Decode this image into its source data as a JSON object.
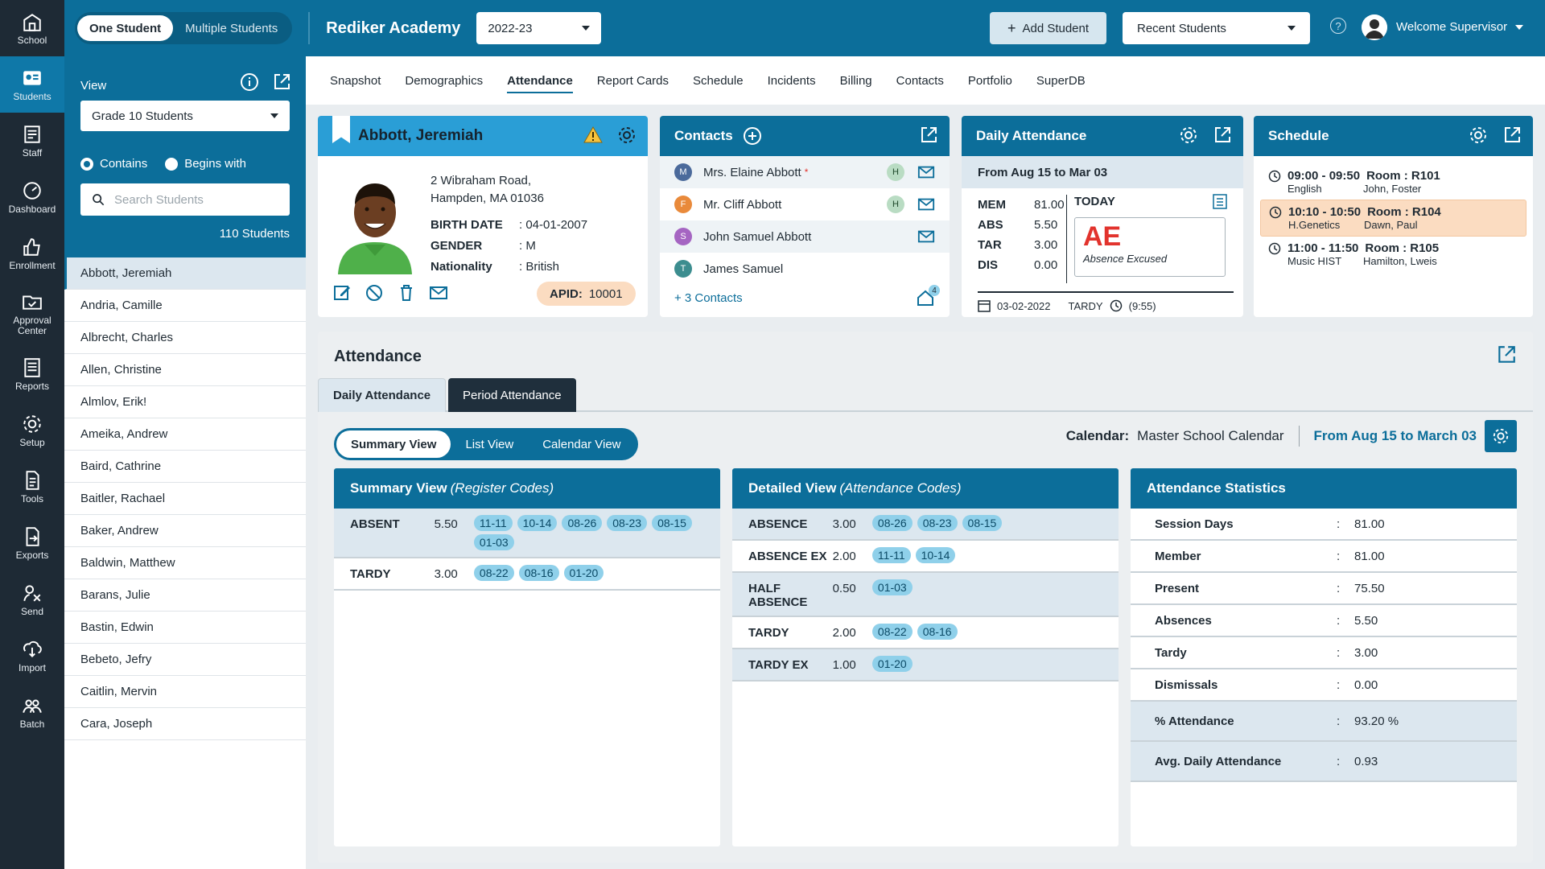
{
  "rail": [
    {
      "label": "School",
      "icon": "school-icon"
    },
    {
      "label": "Students",
      "icon": "student-card-icon",
      "active": true
    },
    {
      "label": "Staff",
      "icon": "staff-icon"
    },
    {
      "label": "Dashboard",
      "icon": "dashboard-icon"
    },
    {
      "label": "Enrollment",
      "icon": "thumbs-up-icon"
    },
    {
      "label": "Approval Center",
      "icon": "folder-check-icon"
    },
    {
      "label": "Reports",
      "icon": "report-icon"
    },
    {
      "label": "Setup",
      "icon": "gear-icon"
    },
    {
      "label": "Tools",
      "icon": "tools-icon"
    },
    {
      "label": "Exports",
      "icon": "export-icon"
    },
    {
      "label": "Send",
      "icon": "send-icon"
    },
    {
      "label": "Import",
      "icon": "import-icon"
    },
    {
      "label": "Batch",
      "icon": "batch-icon"
    }
  ],
  "topbar": {
    "mode_one": "One Student",
    "mode_multi": "Multiple Students",
    "academy": "Rediker Academy",
    "year": "2022-23",
    "add_student": "Add Student",
    "recent_students": "Recent Students",
    "help": "?",
    "welcome": "Welcome Supervisor"
  },
  "leftpanel": {
    "view_label": "View",
    "view_select": "Grade 10 Students",
    "radio_contains": "Contains",
    "radio_begins": "Begins with",
    "search_placeholder": "Search Students",
    "count": "110 Students",
    "students": [
      "Abbott, Jeremiah",
      "Andria, Camille",
      "Albrecht, Charles",
      "Allen, Christine",
      "Almlov, Erik!",
      "Ameika, Andrew",
      "Baird, Cathrine",
      "Baitler, Rachael",
      "Baker, Andrew",
      "Baldwin, Matthew",
      "Barans, Julie",
      "Bastin, Edwin",
      "Bebeto, Jefry",
      "Caitlin, Mervin",
      "Cara, Joseph"
    ]
  },
  "tabs": [
    "Snapshot",
    "Demographics",
    "Attendance",
    "Report Cards",
    "Schedule",
    "Incidents",
    "Billing",
    "Contacts",
    "Portfolio",
    "SuperDB"
  ],
  "student": {
    "name": "Abbott, Jeremiah",
    "addr1": "2 Wibraham Road,",
    "addr2": "Hampden, MA 01036",
    "birth_k": "BIRTH DATE",
    "birth_v": ": 04-01-2007",
    "gender_k": "GENDER",
    "gender_v": ": M",
    "nat_k": "Nationality",
    "nat_v": ": British",
    "apid_k": "APID:",
    "apid_v": "10001"
  },
  "contacts": {
    "title": "Contacts",
    "items": [
      {
        "initial": "M",
        "name": "Mrs. Elaine Abbott",
        "star": "*",
        "h": "H",
        "color": "#4b6a9b"
      },
      {
        "initial": "F",
        "name": "Mr. Cliff Abbott",
        "h": "H",
        "color": "#e98a3b"
      },
      {
        "initial": "S",
        "name": "John Samuel Abbott",
        "color": "#a565c2"
      },
      {
        "initial": "T",
        "name": "James Samuel",
        "color": "#3c8d8f"
      }
    ],
    "more": "+ 3 Contacts",
    "home_count": "4"
  },
  "daily": {
    "title": "Daily Attendance",
    "range": "From Aug 15 to Mar 03",
    "stats": [
      {
        "k": "MEM",
        "v": "81.00"
      },
      {
        "k": "ABS",
        "v": "5.50"
      },
      {
        "k": "TAR",
        "v": "3.00"
      },
      {
        "k": "DIS",
        "v": "0.00"
      }
    ],
    "today": "TODAY",
    "code": "AE",
    "code_desc": "Absence Excused",
    "date": "03-02-2022",
    "tardy": "TARDY",
    "tardy_time": "(9:55)"
  },
  "schedule": {
    "title": "Schedule",
    "items": [
      {
        "time": "09:00 - 09:50",
        "room": "Room : R101",
        "course": "English",
        "teacher": "John, Foster"
      },
      {
        "time": "10:10 - 10:50",
        "room": "Room : R104",
        "course": "H.Genetics",
        "teacher": "Dawn, Paul",
        "current": true
      },
      {
        "time": "11:00 - 11:50",
        "room": "Room : R105",
        "course": "Music HIST",
        "teacher": "Hamilton, Lweis"
      }
    ]
  },
  "attendance": {
    "title": "Attendance",
    "tab_daily": "Daily Attendance",
    "tab_period": "Period Attendance",
    "view_summary": "Summary View",
    "view_list": "List View",
    "view_calendar": "Calendar View",
    "calendar_label": "Calendar:",
    "calendar_name": "Master School Calendar",
    "calendar_range": "From Aug 15 to March 03",
    "summary": {
      "title": "Summary View",
      "sub": "(Register Codes)",
      "rows": [
        {
          "k": "ABSENT",
          "v": "5.50",
          "dates": [
            "11-11",
            "10-14",
            "08-26",
            "08-23",
            "08-15",
            "01-03"
          ]
        },
        {
          "k": "TARDY",
          "v": "3.00",
          "dates": [
            "08-22",
            "08-16",
            "01-20"
          ]
        }
      ]
    },
    "detailed": {
      "title": "Detailed View",
      "sub": "(Attendance Codes)",
      "rows": [
        {
          "k": "ABSENCE",
          "v": "3.00",
          "dates": [
            "08-26",
            "08-23",
            "08-15"
          ]
        },
        {
          "k": "ABSENCE EX",
          "v": "2.00",
          "dates": [
            "11-11",
            "10-14"
          ]
        },
        {
          "k": "HALF ABSENCE",
          "v": "0.50",
          "dates": [
            "01-03"
          ]
        },
        {
          "k": "TARDY",
          "v": "2.00",
          "dates": [
            "08-22",
            "08-16"
          ]
        },
        {
          "k": "TARDY EX",
          "v": "1.00",
          "dates": [
            "01-20"
          ]
        }
      ]
    },
    "stats": {
      "title": "Attendance Statistics",
      "rows": [
        {
          "k": "Session Days",
          "v": "81.00"
        },
        {
          "k": "Member",
          "v": "81.00"
        },
        {
          "k": "Present",
          "v": "75.50"
        },
        {
          "k": "Absences",
          "v": "5.50"
        },
        {
          "k": "Tardy",
          "v": "3.00"
        },
        {
          "k": "Dismissals",
          "v": "0.00"
        },
        {
          "k": "% Attendance",
          "v": "93.20 %",
          "alt": true
        },
        {
          "k": "Avg. Daily Attendance",
          "v": "0.93",
          "alt": true
        }
      ]
    }
  }
}
